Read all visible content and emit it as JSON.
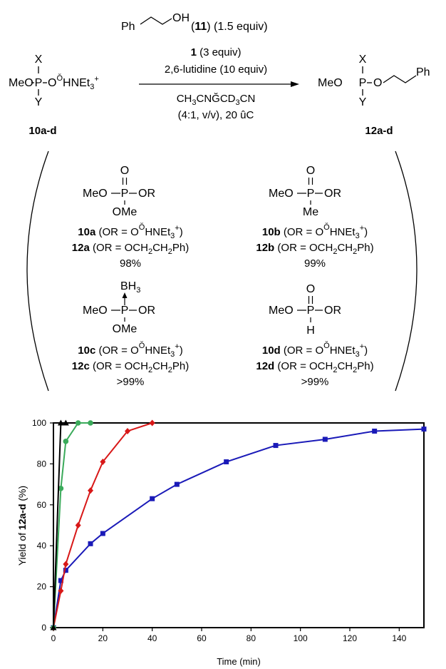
{
  "scheme": {
    "alcohol": {
      "ph": "Ph",
      "oh": "OH",
      "num": "11",
      "equiv": "(1.5 equiv)"
    },
    "reactant": {
      "x": "X",
      "y": "Y",
      "meo": "MeO",
      "p": "P",
      "o": "O",
      "anion": "Ŏ",
      "counter": "HNEt",
      "sub3": "3",
      "plus": "+",
      "label": "10a-d"
    },
    "conditions": {
      "reagent_num": "1",
      "reagent_equiv": "(3 equiv)",
      "base": "2,6-lutidine (10 equiv)",
      "solvent_a": "CH",
      "solvent_b": "CNĞCD",
      "solvent_c": "CN",
      "ratio": "(4:1, v/v), 20 ûC"
    },
    "product": {
      "x": "X",
      "y": "Y",
      "meo": "MeO",
      "p": "P",
      "o": "O",
      "ph": "Ph",
      "label": "12a-d"
    }
  },
  "compounds": [
    {
      "top": "O",
      "meo": "MeO",
      "p": "P",
      "or": "OR",
      "bottom": "OMe",
      "line1_num": "10a",
      "line1_text": "(OR = O",
      "line2_num": "12a",
      "line2_text": "(OR = OCH",
      "yield": "98%"
    },
    {
      "top": "O",
      "meo": "MeO",
      "p": "P",
      "or": "OR",
      "bottom": "Me",
      "line1_num": "10b",
      "line1_text": "(OR = O",
      "line2_num": "12b",
      "line2_text": "(OR = OCH",
      "yield": "99%"
    },
    {
      "top": "BH",
      "top_sub": "3",
      "meo": "MeO",
      "p": "P",
      "or": "OR",
      "bottom": "OMe",
      "line1_num": "10c",
      "line1_text": "(OR = O",
      "line2_num": "12c",
      "line2_text": "(OR = OCH",
      "yield": ">99%"
    },
    {
      "top": "O",
      "meo": "MeO",
      "p": "P",
      "or": "OR",
      "bottom": "H",
      "line1_num": "10d",
      "line1_text": "(OR = O",
      "line2_num": "12d",
      "line2_text": "(OR = OCH",
      "yield": ">99%"
    }
  ],
  "fragments": {
    "anion": "Ŏ",
    "counter": "HNEt",
    "sub3": "3",
    "plus": "+",
    "close": ")",
    "close2": "Ph)",
    "sub2": "2"
  },
  "chart_data": {
    "type": "line",
    "xlabel": "Time (min)",
    "ylabel_prefix": "Yield of ",
    "ylabel_bold": "12a-d",
    "ylabel_suffix": " (%)",
    "xlim": [
      0,
      150
    ],
    "ylim": [
      0,
      100
    ],
    "xticks": [
      0,
      20,
      40,
      60,
      80,
      100,
      120,
      140
    ],
    "yticks": [
      0,
      20,
      40,
      60,
      80,
      100
    ],
    "grid": false,
    "series": [
      {
        "color": "#1a1ab8",
        "marker": "square",
        "x": [
          0,
          3,
          5,
          15,
          20,
          40,
          50,
          70,
          90,
          110,
          130,
          150
        ],
        "y": [
          0,
          23,
          28,
          41,
          46,
          63,
          70,
          81,
          89,
          92,
          96,
          97
        ]
      },
      {
        "color": "#d81818",
        "marker": "diamond",
        "x": [
          0,
          3,
          5,
          10,
          15,
          20,
          30,
          40
        ],
        "y": [
          0,
          18,
          31,
          50,
          67,
          81,
          96,
          100
        ]
      },
      {
        "color": "#3aaa5a",
        "marker": "circle",
        "x": [
          0,
          3,
          5,
          10,
          15
        ],
        "y": [
          0,
          68,
          91,
          100,
          100
        ]
      },
      {
        "color": "#000000",
        "marker": "triangle",
        "x": [
          0,
          3,
          5
        ],
        "y": [
          0,
          100,
          100
        ]
      }
    ]
  }
}
